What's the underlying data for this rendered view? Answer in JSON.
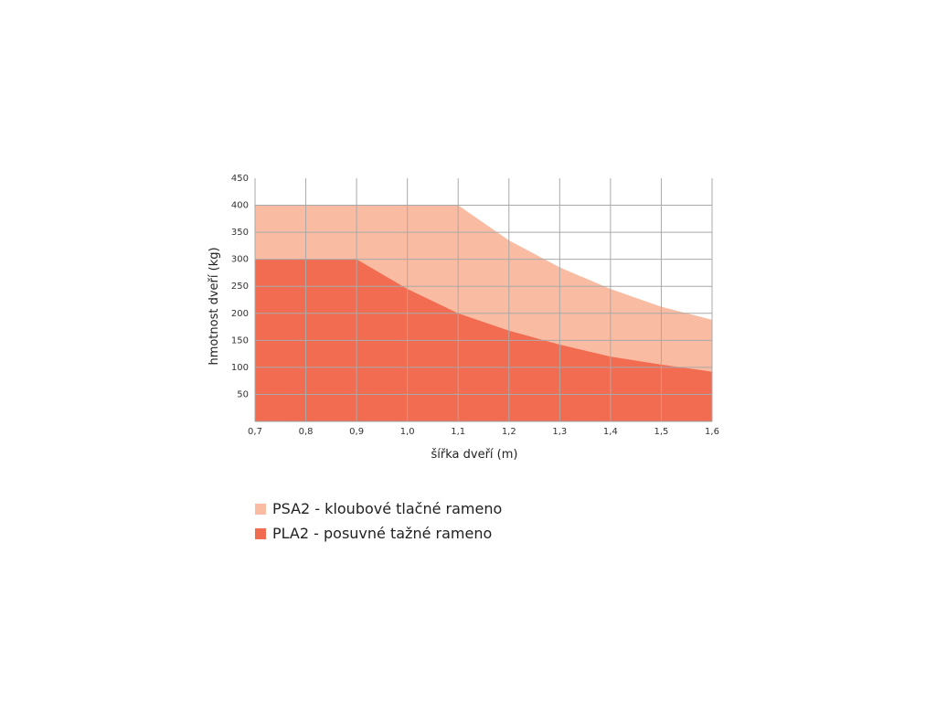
{
  "chart_data": {
    "type": "area",
    "title": "",
    "xlabel": "šířka dveří (m)",
    "ylabel": "hmotnost dveří (kg)",
    "xlim": [
      0.7,
      1.6
    ],
    "ylim": [
      0,
      450
    ],
    "x_ticks": [
      "0,7",
      "0,8",
      "0,9",
      "1,0",
      "1,1",
      "1,2",
      "1,3",
      "1,4",
      "1,5",
      "1,6"
    ],
    "y_ticks": [
      "50",
      "100",
      "150",
      "200",
      "250",
      "300",
      "350",
      "400",
      "450"
    ],
    "grid": true,
    "legend_position": "bottom-left",
    "series": [
      {
        "name": "PSA2 - kloubové tlačné rameno",
        "color": "#f9bba2",
        "x": [
          0.7,
          1.1,
          1.2,
          1.3,
          1.4,
          1.5,
          1.6
        ],
        "y": [
          400,
          400,
          335,
          285,
          245,
          212,
          188
        ]
      },
      {
        "name": "PLA2 - posuvné tažné rameno",
        "color": "#f26c52",
        "x": [
          0.7,
          0.9,
          1.0,
          1.1,
          1.2,
          1.3,
          1.4,
          1.5,
          1.6
        ],
        "y": [
          300,
          300,
          245,
          200,
          168,
          142,
          120,
          105,
          92
        ]
      }
    ]
  }
}
